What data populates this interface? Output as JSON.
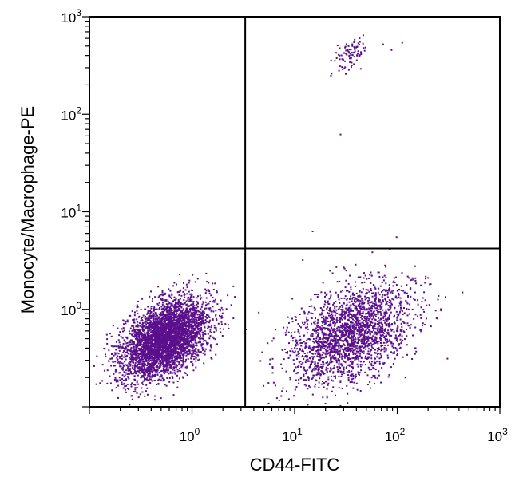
{
  "chart_data": {
    "type": "scatter",
    "title": "",
    "xlabel": "CD44-FITC",
    "ylabel": "Monocyte/Macrophage-PE",
    "xscale": "log",
    "yscale": "log",
    "xlim": [
      0.1,
      1000
    ],
    "ylim": [
      0.1,
      1000
    ],
    "x_ticks": [
      {
        "base": "10",
        "exp": "0",
        "value": 1
      },
      {
        "base": "10",
        "exp": "1",
        "value": 10
      },
      {
        "base": "10",
        "exp": "2",
        "value": 100
      },
      {
        "base": "10",
        "exp": "3",
        "value": 1000
      }
    ],
    "y_ticks": [
      {
        "base": "10",
        "exp": "0",
        "value": 1
      },
      {
        "base": "10",
        "exp": "1",
        "value": 10
      },
      {
        "base": "10",
        "exp": "2",
        "value": 100
      },
      {
        "base": "10",
        "exp": "3",
        "value": 1000
      }
    ],
    "quadrant_gates": {
      "x": 3.3,
      "y": 4.2
    },
    "grid": false,
    "legend": "none",
    "point_color": "#5b0f8c",
    "clusters": [
      {
        "center_x": 0.55,
        "center_y": 0.5,
        "spread_x_log": 0.21,
        "spread_y_log": 0.2,
        "count": 4200
      },
      {
        "center_x": 35,
        "center_y": 0.55,
        "spread_x_log": 0.3,
        "spread_y_log": 0.26,
        "count": 2300
      },
      {
        "center_x": 35,
        "center_y": 400,
        "spread_x_log": 0.08,
        "spread_y_log": 0.08,
        "count": 90
      }
    ],
    "outliers": [
      {
        "x": 28,
        "y": 62
      },
      {
        "x": 15,
        "y": 6.3
      },
      {
        "x": 73,
        "y": 520
      },
      {
        "x": 112,
        "y": 540
      },
      {
        "x": 88,
        "y": 455
      },
      {
        "x": 12,
        "y": 3.2
      },
      {
        "x": 200,
        "y": 2.1
      },
      {
        "x": 178,
        "y": 0.72
      }
    ]
  }
}
